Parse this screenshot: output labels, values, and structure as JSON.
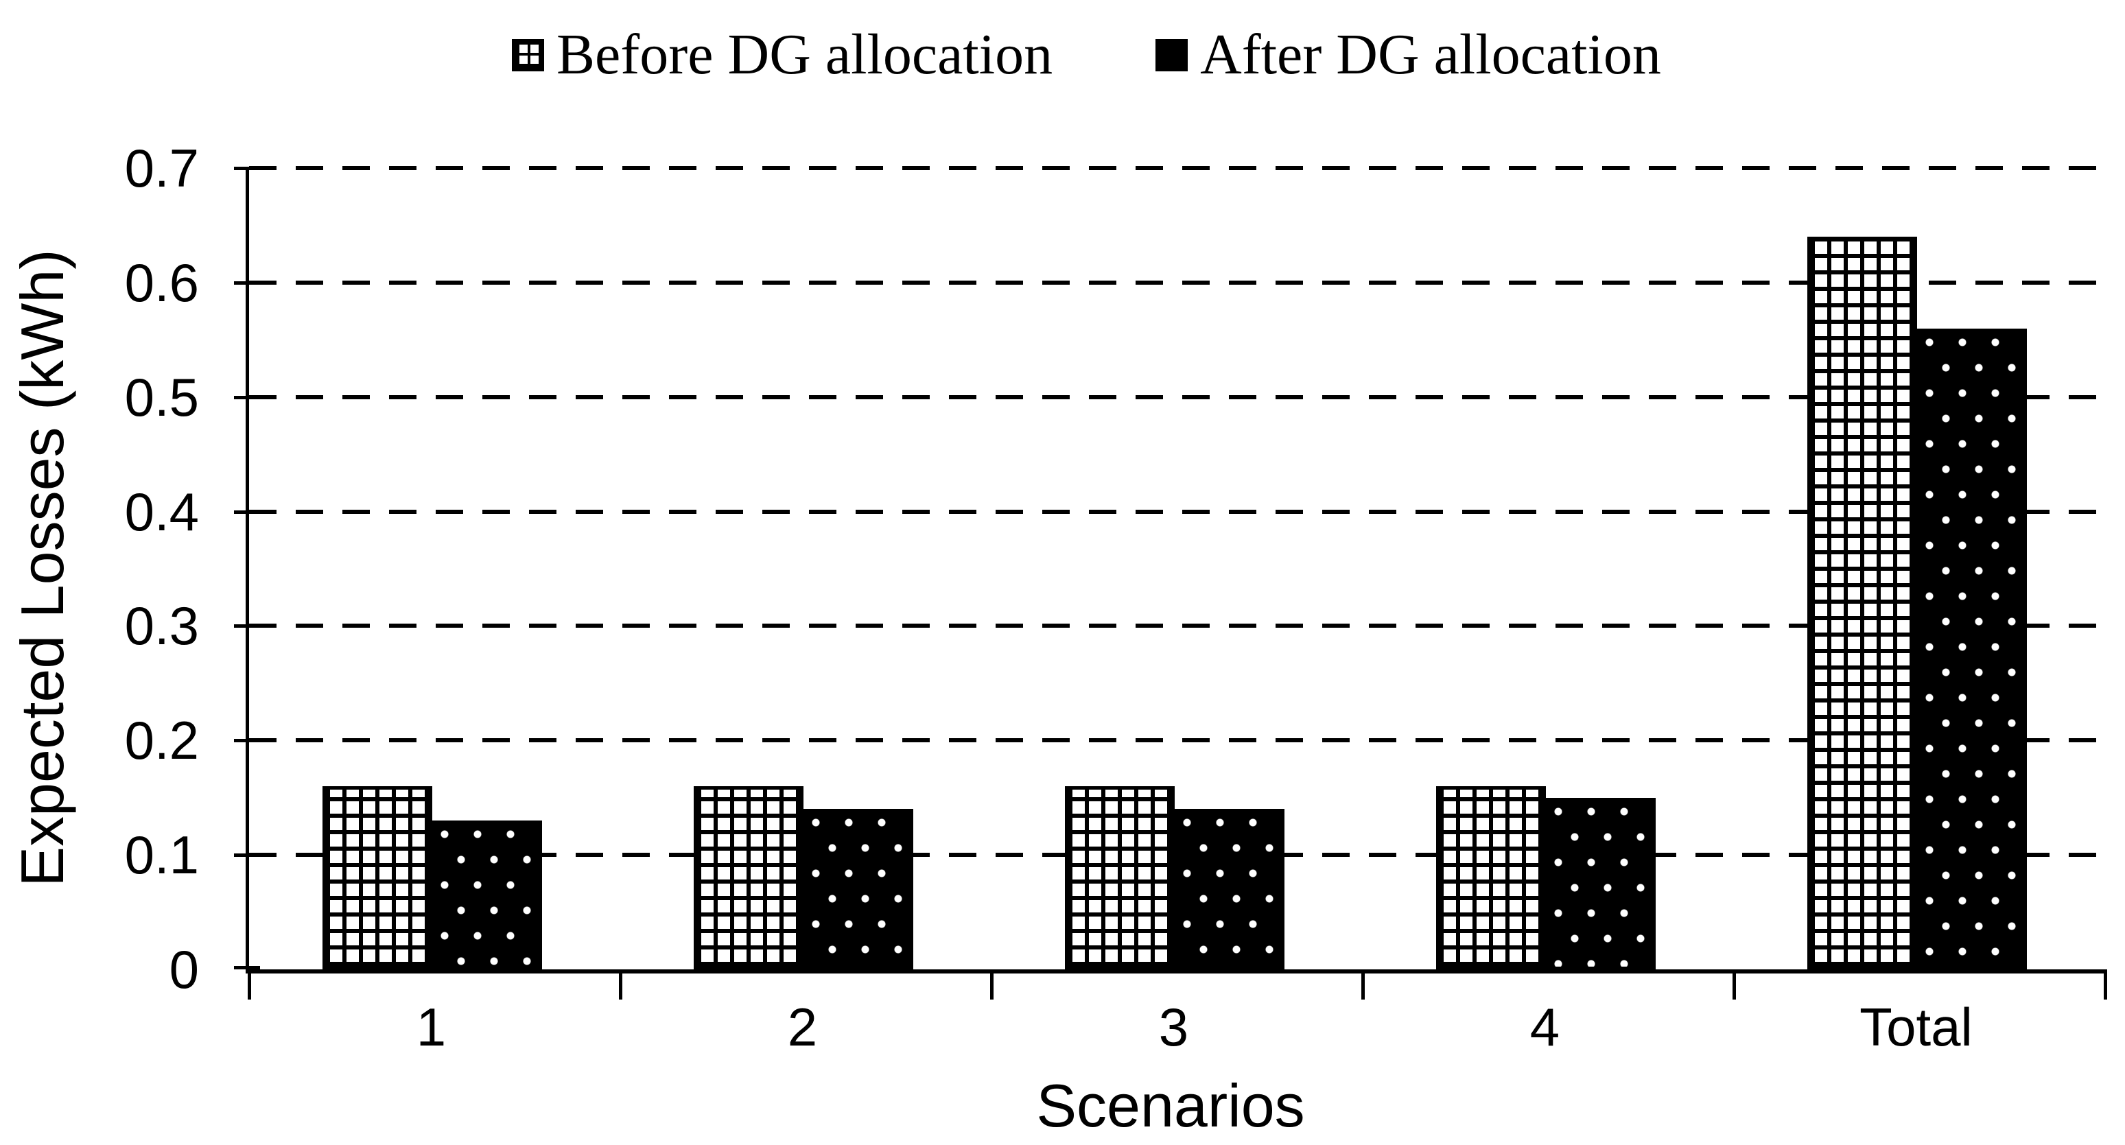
{
  "chart_data": {
    "type": "bar",
    "categories": [
      "1",
      "2",
      "3",
      "4",
      "Total"
    ],
    "series": [
      {
        "name": "Before DG allocation",
        "pattern": "white-crosshatch-grid",
        "values": [
          0.16,
          0.16,
          0.16,
          0.16,
          0.64
        ]
      },
      {
        "name": "After DG allocation",
        "pattern": "black-white-dots",
        "values": [
          0.13,
          0.14,
          0.14,
          0.15,
          0.56
        ]
      }
    ],
    "title": "",
    "xlabel": "Scenarios",
    "ylabel": "Expected Losses (kWh)",
    "ylim": [
      0,
      0.7
    ],
    "yticks": [
      0,
      0.1,
      0.2,
      0.3,
      0.4,
      0.5,
      0.6,
      0.7
    ],
    "ytick_labels": [
      "0",
      "0.1",
      "0.2",
      "0.3",
      "0.4",
      "0.5",
      "0.6",
      "0.7"
    ],
    "grid": "dashed-horizontal",
    "legend_position": "top-center",
    "colors": {
      "foreground": "#000000",
      "background": "#ffffff"
    }
  },
  "legend": {
    "items": [
      {
        "label": "Before DG allocation"
      },
      {
        "label": "After DG allocation"
      }
    ]
  },
  "axes": {
    "x_title": "Scenarios",
    "y_title": "Expected Losses (kWh)"
  }
}
